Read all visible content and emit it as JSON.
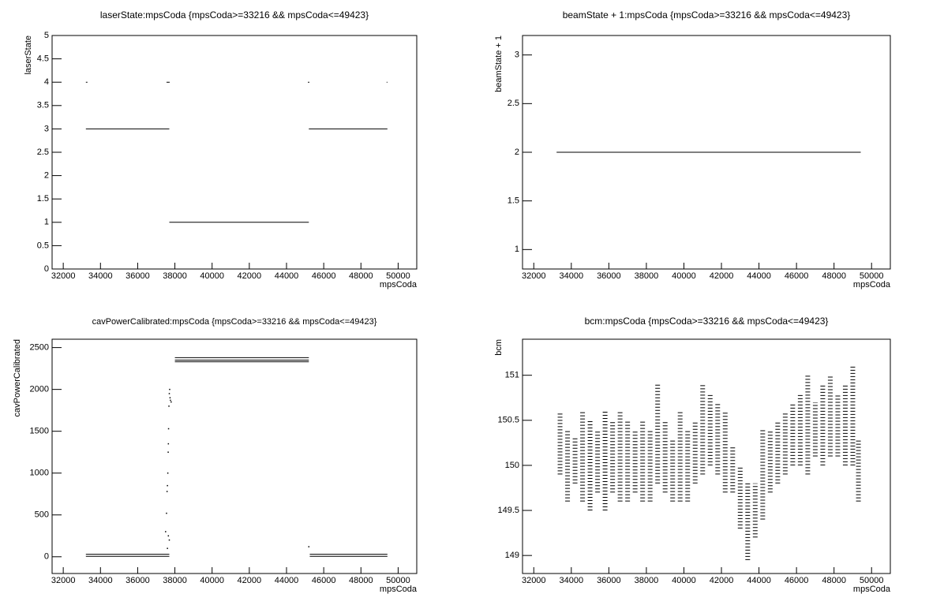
{
  "chart_data": [
    {
      "type": "scatter",
      "title": "laserState:mpsCoda {mpsCoda>=33216 && mpsCoda<=49423}",
      "x_label": "mpsCoda",
      "y_label": "laserState",
      "xlim": [
        31400,
        51000
      ],
      "xticks": [
        32000,
        34000,
        36000,
        38000,
        40000,
        42000,
        44000,
        46000,
        48000,
        50000
      ],
      "ylim": [
        0,
        5
      ],
      "yticks": [
        0,
        0.5,
        1,
        1.5,
        2,
        2.5,
        3,
        3.5,
        4,
        4.5,
        5
      ],
      "series": [
        {
          "color": "#000000",
          "style": "line",
          "x": [
            33216,
            37700,
            37700,
            37700,
            45200,
            45200,
            45200,
            49423
          ],
          "values": [
            3,
            3,
            null,
            1,
            1,
            null,
            3,
            3
          ]
        },
        {
          "color": "#000000",
          "style": "line",
          "x": [
            33216,
            33300,
            37550,
            37550,
            37720,
            45150,
            45150,
            45230,
            49380,
            49380,
            49423
          ],
          "values": [
            4,
            4,
            null,
            4,
            4,
            null,
            4,
            4,
            null,
            4,
            4
          ]
        }
      ]
    },
    {
      "type": "scatter",
      "title": "beamState + 1:mpsCoda {mpsCoda>=33216 && mpsCoda<=49423}",
      "x_label": "mpsCoda",
      "y_label": "beamState + 1",
      "xlim": [
        31400,
        51000
      ],
      "xticks": [
        32000,
        34000,
        36000,
        38000,
        40000,
        42000,
        44000,
        46000,
        48000,
        50000
      ],
      "ylim": [
        0.8,
        3.2
      ],
      "yticks": [
        1,
        1.5,
        2,
        2.5,
        3
      ],
      "series": [
        {
          "color": "#000000",
          "style": "line",
          "x": [
            33216,
            49423
          ],
          "values": [
            2,
            2
          ]
        }
      ]
    },
    {
      "type": "scatter",
      "title": "cavPowerCalibrated:mpsCoda {mpsCoda>=33216 && mpsCoda<=49423}",
      "x_label": "mpsCoda",
      "y_label": "cavPowerCalibrated",
      "xlim": [
        31400,
        51000
      ],
      "xticks": [
        32000,
        34000,
        36000,
        38000,
        40000,
        42000,
        44000,
        46000,
        48000,
        50000
      ],
      "ylim": [
        -200,
        2600
      ],
      "yticks": [
        0,
        500,
        1000,
        1500,
        2000,
        2500
      ],
      "series": [
        {
          "color": "#000000",
          "style": "line",
          "x": [
            33216,
            37700,
            37900,
            38000,
            45200,
            45250,
            45250,
            49423
          ],
          "values": [
            30,
            30,
            null,
            2380,
            2380,
            null,
            30,
            30
          ]
        },
        {
          "color": "#000000",
          "style": "line",
          "x": [
            33216,
            37700,
            37900,
            38000,
            45200,
            45250,
            45250,
            49423
          ],
          "values": [
            5,
            5,
            null,
            2330,
            2330,
            null,
            5,
            5
          ]
        },
        {
          "color": "#000000",
          "style": "line",
          "x": [
            38000,
            45200
          ],
          "values": [
            2350,
            2350
          ]
        },
        {
          "color": "#000000",
          "style": "dots",
          "x": [
            37500,
            37550,
            37580,
            37600,
            37620,
            37640,
            37650,
            37660,
            37680,
            37700,
            37720,
            37740,
            37760,
            37800,
            37650,
            37700,
            37600,
            45200
          ],
          "values": [
            300,
            520,
            780,
            850,
            1000,
            1250,
            1350,
            1530,
            1800,
            1950,
            2000,
            1900,
            1870,
            1850,
            250,
            200,
            100,
            120
          ]
        }
      ]
    },
    {
      "type": "strip",
      "title": "bcm:mpsCoda {mpsCoda>=33216 && mpsCoda<=49423}",
      "x_label": "mpsCoda",
      "y_label": "bcm",
      "xlim": [
        31400,
        51000
      ],
      "xticks": [
        32000,
        34000,
        36000,
        38000,
        40000,
        42000,
        44000,
        46000,
        48000,
        50000
      ],
      "ylim": [
        148.8,
        151.4
      ],
      "yticks": [
        149,
        149.5,
        150,
        150.5,
        151
      ],
      "color": "#000000",
      "x": [
        33400,
        33800,
        34200,
        34600,
        35000,
        35400,
        35800,
        36200,
        36600,
        37000,
        37400,
        37800,
        38200,
        38600,
        39000,
        39400,
        39800,
        40200,
        40600,
        41000,
        41400,
        41800,
        42200,
        42600,
        43000,
        43400,
        43800,
        44200,
        44600,
        45000,
        45400,
        45800,
        46200,
        46600,
        47000,
        47400,
        47800,
        48200,
        48600,
        49000,
        49300
      ],
      "low": [
        149.9,
        149.6,
        149.8,
        149.6,
        149.5,
        149.7,
        149.5,
        149.7,
        149.6,
        149.6,
        149.7,
        149.6,
        149.6,
        149.8,
        149.7,
        149.6,
        149.6,
        149.6,
        149.8,
        149.9,
        150.0,
        149.9,
        149.7,
        149.7,
        149.3,
        148.95,
        149.2,
        149.4,
        149.7,
        149.8,
        149.9,
        150.0,
        150.0,
        149.9,
        150.1,
        150.0,
        150.1,
        150.1,
        150.0,
        150.0,
        149.6
      ],
      "high": [
        150.6,
        150.4,
        150.3,
        150.6,
        150.5,
        150.4,
        150.6,
        150.5,
        150.6,
        150.5,
        150.4,
        150.5,
        150.4,
        150.9,
        150.5,
        150.3,
        150.6,
        150.4,
        150.5,
        150.9,
        150.8,
        150.7,
        150.6,
        150.2,
        150.0,
        149.8,
        149.8,
        150.4,
        150.4,
        150.5,
        150.6,
        150.7,
        150.8,
        151.0,
        150.7,
        150.9,
        151.0,
        150.8,
        150.9,
        151.1,
        150.3
      ]
    }
  ]
}
